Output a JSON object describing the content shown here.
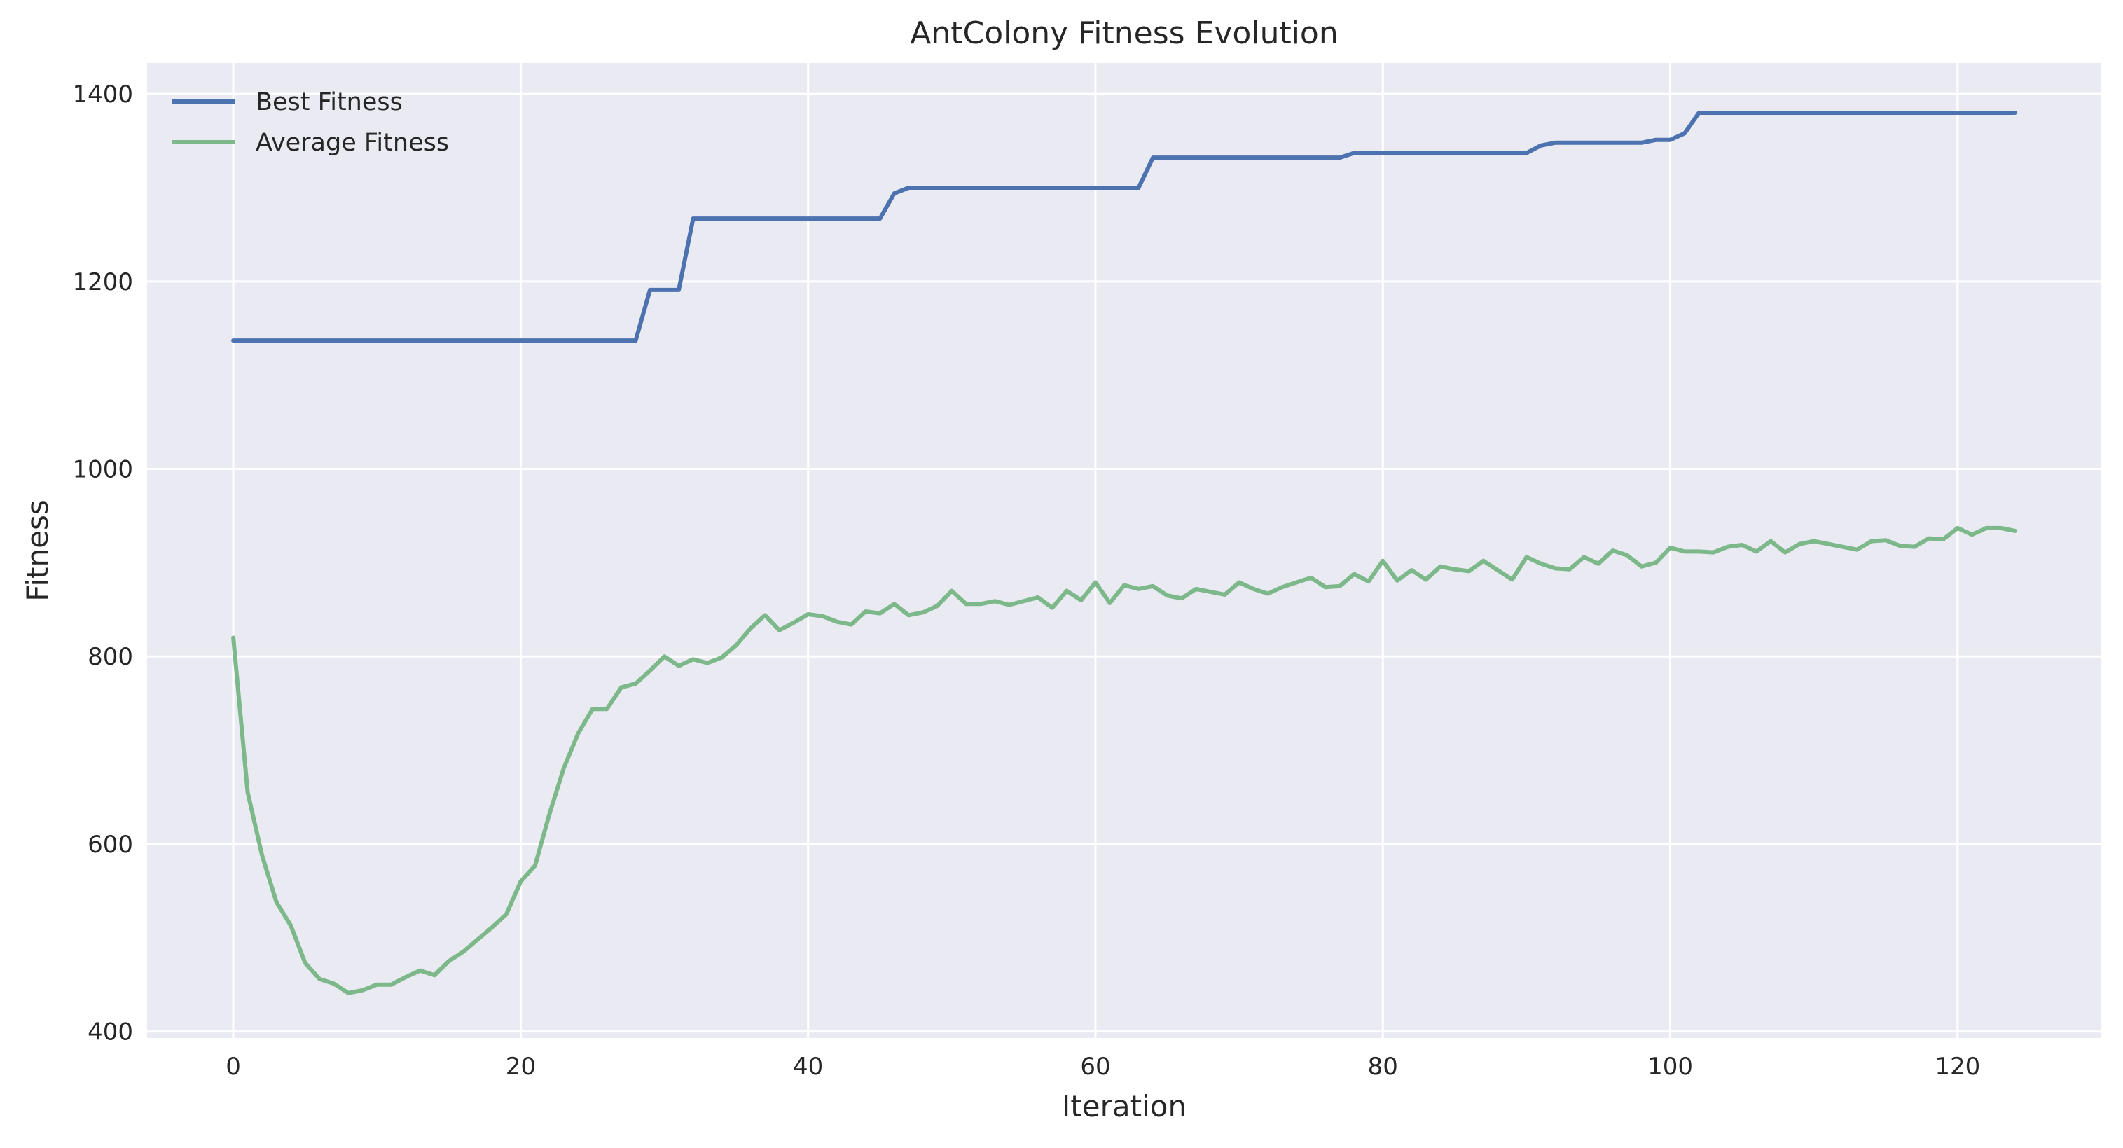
{
  "chart_data": {
    "type": "line",
    "title": "AntColony Fitness Evolution",
    "xlabel": "Iteration",
    "ylabel": "Fitness",
    "xlim": [
      -6,
      130
    ],
    "ylim": [
      393,
      1433
    ],
    "xticks": [
      0,
      20,
      40,
      60,
      80,
      100,
      120
    ],
    "yticks": [
      400,
      600,
      800,
      1000,
      1200,
      1400
    ],
    "xtick_labels": [
      "0",
      "20",
      "40",
      "60",
      "80",
      "100",
      "120"
    ],
    "ytick_labels": [
      "400",
      "600",
      "800",
      "1000",
      "1200",
      "1400"
    ],
    "grid": true,
    "legend_position": "top-left",
    "background": "#EAEAF2",
    "series": [
      {
        "name": "Best Fitness",
        "color": "#4C72B0",
        "x_start": 0,
        "values": [
          1137,
          1137,
          1137,
          1137,
          1137,
          1137,
          1137,
          1137,
          1137,
          1137,
          1137,
          1137,
          1137,
          1137,
          1137,
          1137,
          1137,
          1137,
          1137,
          1137,
          1137,
          1137,
          1137,
          1137,
          1137,
          1137,
          1137,
          1137,
          1137,
          1191,
          1191,
          1191,
          1267,
          1267,
          1267,
          1267,
          1267,
          1267,
          1267,
          1267,
          1267,
          1267,
          1267,
          1267,
          1267,
          1267,
          1294,
          1300,
          1300,
          1300,
          1300,
          1300,
          1300,
          1300,
          1300,
          1300,
          1300,
          1300,
          1300,
          1300,
          1300,
          1300,
          1300,
          1300,
          1332,
          1332,
          1332,
          1332,
          1332,
          1332,
          1332,
          1332,
          1332,
          1332,
          1332,
          1332,
          1332,
          1332,
          1337,
          1337,
          1337,
          1337,
          1337,
          1337,
          1337,
          1337,
          1337,
          1337,
          1337,
          1337,
          1337,
          1345,
          1348,
          1348,
          1348,
          1348,
          1348,
          1348,
          1348,
          1351,
          1351,
          1358,
          1380,
          1380,
          1380,
          1380,
          1380,
          1380,
          1380,
          1380,
          1380,
          1380,
          1380,
          1380,
          1380,
          1380,
          1380,
          1380,
          1380,
          1380,
          1380,
          1380,
          1380,
          1380,
          1380
        ]
      },
      {
        "name": "Average Fitness",
        "color": "#7DB88A",
        "x_start": 0,
        "values": [
          820,
          655,
          588,
          538,
          513,
          473,
          456,
          451,
          441,
          444,
          450,
          450,
          458,
          465,
          460,
          475,
          485,
          498,
          511,
          525,
          560,
          577,
          632,
          681,
          718,
          744,
          744,
          767,
          771,
          785,
          800,
          790,
          797,
          793,
          799,
          812,
          830,
          844,
          828,
          836,
          845,
          843,
          837,
          834,
          848,
          846,
          856,
          844,
          847,
          854,
          870,
          856,
          856,
          859,
          855,
          859,
          863,
          852,
          870,
          860,
          879,
          857,
          876,
          872,
          875,
          865,
          862,
          872,
          869,
          866,
          879,
          872,
          867,
          874,
          879,
          884,
          874,
          875,
          888,
          880,
          902,
          881,
          892,
          882,
          896,
          893,
          891,
          902,
          892,
          882,
          906,
          899,
          894,
          893,
          906,
          899,
          913,
          908,
          896,
          900,
          916,
          912,
          912,
          911,
          917,
          919,
          912,
          923,
          911,
          920,
          923,
          920,
          917,
          914,
          923,
          924,
          918,
          917,
          926,
          925,
          937,
          930,
          937,
          937,
          934
        ]
      }
    ]
  }
}
